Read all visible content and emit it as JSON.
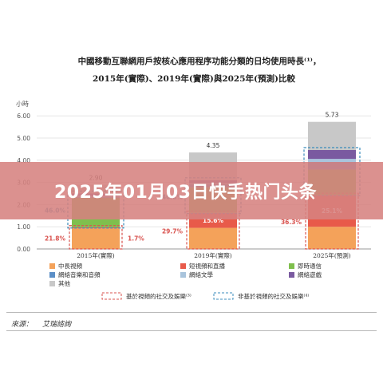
{
  "banner": {
    "headline": "2025年01月03日快手热门头条"
  },
  "source": {
    "label": "來源：",
    "name": "艾瑞諮詢"
  },
  "chart_data": {
    "type": "bar",
    "stacked": true,
    "title": "中國移動互聯網用戶按核心應用程序功能分類的日均使用時長⁽¹⁾，",
    "subtitle": "2015年(實際)、2019年(實際)與2025年(預測)比較",
    "ylabel": "小時",
    "ylim": [
      0,
      6
    ],
    "yticks": [
      "0.00",
      "1.00",
      "2.00",
      "3.00",
      "4.00",
      "5.00",
      "6.00"
    ],
    "grid": true,
    "categories": [
      "2015年(實際)",
      "2019年(實際)",
      "2025年(預測)"
    ],
    "totals": [
      "2.90",
      "4.35",
      "5.73"
    ],
    "total_values": [
      2.9,
      4.35,
      5.73
    ],
    "series": [
      {
        "name": "中長視頻",
        "color": "#f4a25a",
        "values": [
          0.93,
          0.95,
          1.0
        ]
      },
      {
        "name": "短視頻和直播",
        "color": "#e85a4a",
        "values": [
          0.05,
          0.68,
          1.44
        ]
      },
      {
        "name": "即時通信",
        "color": "#7fbf4d",
        "values": [
          1.33,
          1.15,
          1.14
        ]
      },
      {
        "name": "網絡音樂和音頻",
        "color": "#5b8fc7",
        "values": [
          0.04,
          0.14,
          0.34
        ]
      },
      {
        "name": "網絡文學",
        "color": "#a9c4dc",
        "values": [
          0.04,
          0.04,
          0.14
        ]
      },
      {
        "name": "網絡遊戲",
        "color": "#7a5aa0",
        "values": [
          0.11,
          0.14,
          0.4
        ]
      },
      {
        "name": "其他",
        "color": "#c8c8c8",
        "values": [
          0.4,
          1.25,
          1.27
        ]
      }
    ],
    "annotations": {
      "inner": [
        "1.7%",
        "15.6%",
        "25.1%"
      ],
      "left_red": [
        "21.8%",
        "29.7%",
        "36.3%"
      ],
      "left_blue": [
        "46.0%",
        "40.8%",
        ""
      ]
    },
    "bracket_legend": {
      "red": "基於視頻的社交及娛樂⁽³⁾",
      "blue": "非基於視頻的社交及娛樂⁽⁴⁾"
    },
    "colors": {
      "red_bracket": "#d9534f",
      "blue_bracket": "#3c8dbc"
    }
  }
}
